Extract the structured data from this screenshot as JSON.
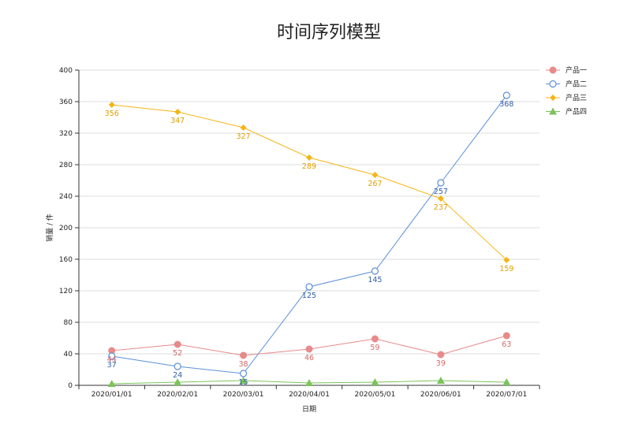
{
  "chart_data": {
    "type": "line",
    "title": "时间序列模型",
    "xlabel": "日期",
    "ylabel": "销量 / 件",
    "categories": [
      "2020/01/01",
      "2020/02/01",
      "2020/03/01",
      "2020/04/01",
      "2020/05/01",
      "2020/06/01",
      "2020/07/01"
    ],
    "ylim": [
      0,
      400
    ],
    "yticks": [
      0,
      40,
      80,
      120,
      160,
      200,
      240,
      280,
      320,
      360,
      400
    ],
    "grid": "horizontal",
    "legend_position": "top-right",
    "series": [
      {
        "name": "产品一",
        "marker": "circle-filled",
        "color": "#e88a8a",
        "label_color": "#d46a6a",
        "values": [
          44,
          52,
          38,
          46,
          59,
          39,
          63
        ]
      },
      {
        "name": "产品二",
        "marker": "circle-open",
        "color": "#5b8fd6",
        "label_color": "#2f5fa8",
        "values": [
          37,
          24,
          15,
          125,
          145,
          257,
          368
        ]
      },
      {
        "name": "产品三",
        "marker": "diamond",
        "color": "#f5b516",
        "label_color": "#e0a000",
        "values": [
          356,
          347,
          327,
          289,
          267,
          237,
          159
        ]
      },
      {
        "name": "产品四",
        "marker": "triangle",
        "color": "#7cc35a",
        "label_color": "#5a9a3a",
        "values": [
          2,
          4,
          6,
          3,
          4,
          6,
          4
        ]
      }
    ]
  }
}
